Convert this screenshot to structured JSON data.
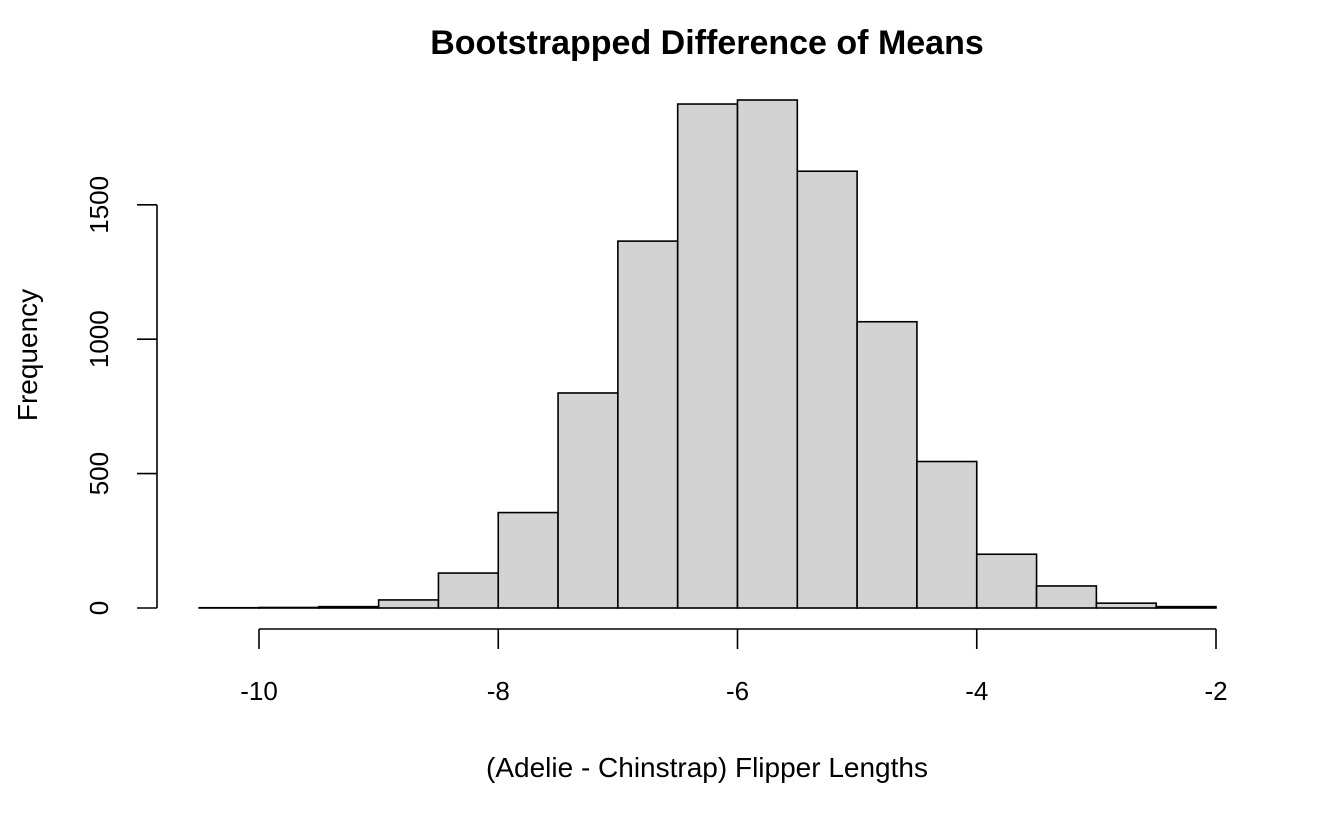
{
  "chart_data": {
    "type": "bar",
    "title": "Bootstrapped Difference of Means",
    "xlabel": "(Adelie - Chinstrap) Flipper Lengths",
    "ylabel": "Frequency",
    "bin_edges": [
      -10.5,
      -10.0,
      -9.5,
      -9.0,
      -8.5,
      -8.0,
      -7.5,
      -7.0,
      -6.5,
      -6.0,
      -5.5,
      -5.0,
      -4.5,
      -4.0,
      -3.5,
      -3.0,
      -2.5,
      -2.0
    ],
    "values": [
      1,
      2,
      5,
      30,
      130,
      355,
      800,
      1365,
      1875,
      1890,
      1625,
      1065,
      545,
      200,
      82,
      18,
      5
    ],
    "xlim": [
      -10.5,
      -2.0
    ],
    "ylim": [
      0,
      1890
    ],
    "xticks": [
      -10,
      -8,
      -6,
      -4,
      -2
    ],
    "xtick_labels": [
      "-10",
      "-8",
      "-6",
      "-4",
      "-2"
    ],
    "yticks": [
      0,
      500,
      1000,
      1500
    ],
    "ytick_labels": [
      "0",
      "500",
      "1000",
      "1500"
    ],
    "bar_color": "#d3d3d3",
    "grid": false,
    "legend": "none"
  }
}
